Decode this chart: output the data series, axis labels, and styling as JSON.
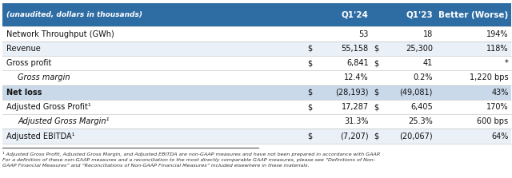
{
  "header_bg": "#2E6DA4",
  "header_text_color": "#FFFFFF",
  "header_label": "(unaudited, dollars in thousands)",
  "col1": "Q1'24",
  "col2": "Q1'23",
  "col3": "Better (Worse)",
  "rows": [
    {
      "label": "Network Throughput (GWh)",
      "indent": false,
      "bold": false,
      "italic": false,
      "highlight": false,
      "dollar1": false,
      "dollar2": false,
      "v1": "53",
      "v2": "18",
      "v3": "194%",
      "bg": "#FFFFFF"
    },
    {
      "label": "Revenue",
      "indent": false,
      "bold": false,
      "italic": false,
      "highlight": false,
      "dollar1": true,
      "dollar2": true,
      "v1": "55,158",
      "v2": "25,300",
      "v3": "118%",
      "bg": "#EAF0F8"
    },
    {
      "label": "Gross profit",
      "indent": false,
      "bold": false,
      "italic": false,
      "highlight": false,
      "dollar1": true,
      "dollar2": true,
      "v1": "6,841",
      "v2": "41",
      "v3": "*",
      "bg": "#FFFFFF"
    },
    {
      "label": "Gross margin",
      "indent": true,
      "bold": false,
      "italic": true,
      "highlight": false,
      "dollar1": false,
      "dollar2": false,
      "v1": "12.4%",
      "v2": "0.2%",
      "v3": "1,220 bps",
      "bg": "#FFFFFF"
    },
    {
      "label": "Net loss",
      "indent": false,
      "bold": true,
      "italic": false,
      "highlight": true,
      "dollar1": true,
      "dollar2": true,
      "v1": "(28,193)",
      "v2": "(49,081)",
      "v3": "43%",
      "bg": "#C9D9EA"
    },
    {
      "label": "Adjusted Gross Profit¹",
      "indent": false,
      "bold": false,
      "italic": false,
      "highlight": false,
      "dollar1": true,
      "dollar2": true,
      "v1": "17,287",
      "v2": "6,405",
      "v3": "170%",
      "bg": "#FFFFFF"
    },
    {
      "label": "Adjusted Gross Margin¹",
      "indent": true,
      "bold": false,
      "italic": true,
      "highlight": false,
      "dollar1": false,
      "dollar2": false,
      "v1": "31.3%",
      "v2": "25.3%",
      "v3": "600 bps",
      "bg": "#FFFFFF"
    },
    {
      "label": "Adjusted EBITDA¹",
      "indent": false,
      "bold": false,
      "italic": false,
      "highlight": false,
      "dollar1": true,
      "dollar2": true,
      "v1": "(7,207)",
      "v2": "(20,067)",
      "v3": "64%",
      "bg": "#EAF0F8"
    }
  ],
  "footnote": "¹ Adjusted Gross Profit, Adjusted Gross Margin, and Adjusted EBITDA are non-GAAP measures and have not been prepared in accordance with GAAP.\nFor a definition of these non-GAAP measures and a reconciliation to the most directly comparable GAAP measures, please see “Definitions of Non-\nGAAP Financial Measures” and “Reconciliations of Non-GAAP Financial Measures” included elsewhere in these materials.",
  "figsize": [
    6.4,
    2.23
  ],
  "dpi": 100
}
